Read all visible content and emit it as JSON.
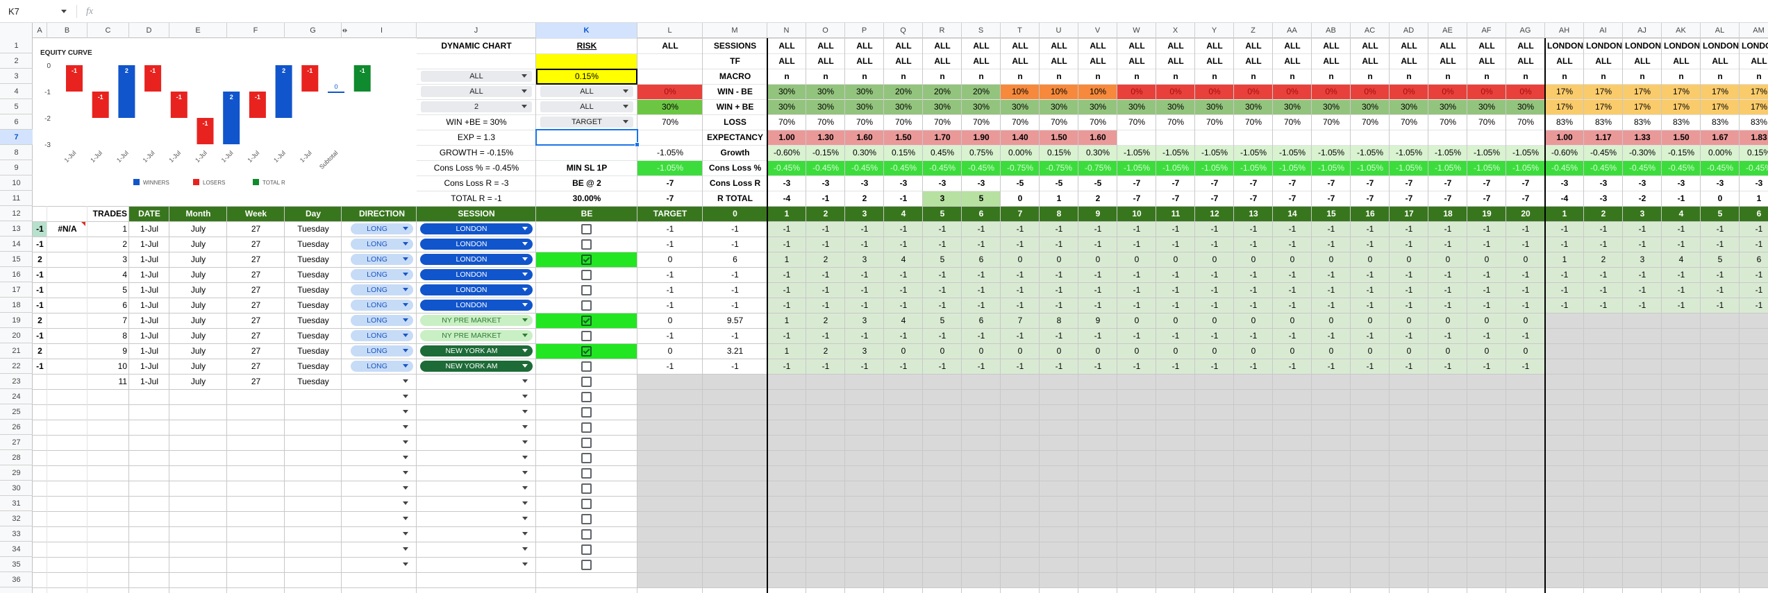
{
  "sheet": {
    "name_box": "K7",
    "formula_icon": "fx",
    "columns": [
      "A",
      "B",
      "C",
      "D",
      "E",
      "F",
      "G",
      "I",
      "J",
      "K",
      "L",
      "M",
      "N",
      "O",
      "P",
      "Q",
      "R",
      "S",
      "T",
      "U",
      "V",
      "W",
      "X",
      "Y",
      "Z",
      "AA",
      "AB",
      "AC",
      "AD",
      "AE",
      "AF",
      "AG",
      "AH",
      "AI",
      "AJ",
      "AK",
      "AL",
      "AM"
    ],
    "row_numbers": [
      1,
      2,
      3,
      4,
      5,
      6,
      7,
      8,
      9,
      10,
      11,
      12,
      13,
      14,
      15,
      16,
      17,
      18,
      19,
      20,
      21,
      22,
      23,
      24,
      25,
      26,
      27,
      28,
      29,
      30,
      31,
      32,
      33,
      34,
      35,
      36
    ],
    "cells": {
      "1": {
        "J": "DYNAMIC CHART",
        "K": "RISK",
        "L": "ALL",
        "M": "SESSIONS",
        "N": [
          "ALL",
          "ALL",
          "ALL",
          "ALL",
          "ALL",
          "ALL",
          "ALL",
          "ALL",
          "ALL",
          "ALL",
          "ALL",
          "ALL",
          "ALL",
          "ALL",
          "ALL",
          "ALL",
          "ALL",
          "ALL",
          "ALL",
          "ALL",
          "LONDON",
          "LONDON",
          "LONDON",
          "LONDON",
          "LONDON",
          "LONDON"
        ]
      },
      "2": {
        "M": "TF",
        "N": [
          "ALL",
          "ALL",
          "ALL",
          "ALL",
          "ALL",
          "ALL",
          "ALL",
          "ALL",
          "ALL",
          "ALL",
          "ALL",
          "ALL",
          "ALL",
          "ALL",
          "ALL",
          "ALL",
          "ALL",
          "ALL",
          "ALL",
          "ALL",
          "ALL",
          "ALL",
          "ALL",
          "ALL",
          "ALL",
          "ALL"
        ]
      },
      "3": {
        "J": "ALL",
        "K": "0.15%",
        "M": "MACRO",
        "N": [
          "n",
          "n",
          "n",
          "n",
          "n",
          "n",
          "n",
          "n",
          "n",
          "n",
          "n",
          "n",
          "n",
          "n",
          "n",
          "n",
          "n",
          "n",
          "n",
          "n",
          "n",
          "n",
          "n",
          "n",
          "n",
          "n"
        ]
      },
      "4": {
        "J": "ALL",
        "K": "ALL",
        "L": "0%",
        "M": "WIN - BE",
        "N": [
          "30%",
          "30%",
          "30%",
          "20%",
          "20%",
          "20%",
          "10%",
          "10%",
          "10%",
          "0%",
          "0%",
          "0%",
          "0%",
          "0%",
          "0%",
          "0%",
          "0%",
          "0%",
          "0%",
          "0%",
          "17%",
          "17%",
          "17%",
          "17%",
          "17%",
          "17%"
        ]
      },
      "5": {
        "J": "2",
        "K": "ALL",
        "L": "30%",
        "M": "WIN + BE",
        "N": [
          "30%",
          "30%",
          "30%",
          "30%",
          "30%",
          "30%",
          "30%",
          "30%",
          "30%",
          "30%",
          "30%",
          "30%",
          "30%",
          "30%",
          "30%",
          "30%",
          "30%",
          "30%",
          "30%",
          "30%",
          "17%",
          "17%",
          "17%",
          "17%",
          "17%",
          "17%"
        ]
      },
      "6": {
        "J": "WIN +BE = 30%",
        "K": "TARGET",
        "L": "70%",
        "M": "LOSS",
        "N": [
          "70%",
          "70%",
          "70%",
          "70%",
          "70%",
          "70%",
          "70%",
          "70%",
          "70%",
          "70%",
          "70%",
          "70%",
          "70%",
          "70%",
          "70%",
          "70%",
          "70%",
          "70%",
          "70%",
          "70%",
          "83%",
          "83%",
          "83%",
          "83%",
          "83%",
          "83%"
        ]
      },
      "7": {
        "J": "EXP = 1.3",
        "M": "EXPECTANCY",
        "N": [
          "1.00",
          "1.30",
          "1.60",
          "1.50",
          "1.70",
          "1.90",
          "1.40",
          "1.50",
          "1.60"
        ],
        "AH": [
          "1.00",
          "1.17",
          "1.33",
          "1.50",
          "1.67",
          "1.83"
        ]
      },
      "8": {
        "J": "GROWTH = -0.15%",
        "L": "-1.05%",
        "M": "Growth",
        "N": [
          "-0.60%",
          "-0.15%",
          "0.30%",
          "0.15%",
          "0.45%",
          "0.75%",
          "0.00%",
          "0.15%",
          "0.30%",
          "-1.05%",
          "-1.05%",
          "-1.05%",
          "-1.05%",
          "-1.05%",
          "-1.05%",
          "-1.05%",
          "-1.05%",
          "-1.05%",
          "-1.05%",
          "-1.05%",
          "-0.60%",
          "-0.45%",
          "-0.30%",
          "-0.15%",
          "0.00%",
          "0.15%"
        ]
      },
      "9": {
        "J": "Cons Loss % = -0.45%",
        "K": "MIN SL 1P",
        "L": "-1.05%",
        "M": "Cons Loss %",
        "N": [
          "-0.45%",
          "-0.45%",
          "-0.45%",
          "-0.45%",
          "-0.45%",
          "-0.45%",
          "-0.75%",
          "-0.75%",
          "-0.75%",
          "-1.05%",
          "-1.05%",
          "-1.05%",
          "-1.05%",
          "-1.05%",
          "-1.05%",
          "-1.05%",
          "-1.05%",
          "-1.05%",
          "-1.05%",
          "-1.05%",
          "-0.45%",
          "-0.45%",
          "-0.45%",
          "-0.45%",
          "-0.45%",
          "-0.45%"
        ]
      },
      "10": {
        "J": "Cons Loss R = -3",
        "K": "BE @ 2",
        "L": -7,
        "M": "Cons Loss R",
        "N": [
          -3,
          -3,
          -3,
          -3,
          -3,
          -3,
          -5,
          -5,
          -5,
          -7,
          -7,
          -7,
          -7,
          -7,
          -7,
          -7,
          -7,
          -7,
          -7,
          -7,
          -3,
          -3,
          -3,
          -3,
          -3,
          -3
        ]
      },
      "11": {
        "J": "TOTAL R = -1",
        "K": "30.00%",
        "L": -7,
        "M": "R TOTAL",
        "N": [
          -4,
          -1,
          2,
          -1,
          3,
          5,
          0,
          1,
          2,
          -7,
          -7,
          -7,
          -7,
          -7,
          -7,
          -7,
          -7,
          -7,
          -7,
          -7,
          -4,
          -3,
          -2,
          -1,
          0,
          1
        ]
      },
      "12": {
        "C": "TRADES",
        "D": "DATE",
        "E": "Month",
        "F": "Week",
        "G": "Day",
        "I": "DIRECTION",
        "J": "SESSION",
        "K": "BE",
        "L": "TARGET",
        "M": 0,
        "N": [
          1,
          2,
          3,
          4,
          5,
          6,
          7,
          8,
          9,
          10,
          11,
          12,
          13,
          14,
          15,
          16,
          17,
          18,
          19,
          20,
          1,
          2,
          3,
          4,
          5,
          6
        ]
      },
      "13": {
        "A": -1,
        "B": "#N/A",
        "C": 1,
        "D": "1-Jul",
        "E": "July",
        "F": 27,
        "G": "Tuesday",
        "I": "LONG",
        "J": {
          "text": "LONDON",
          "color": "#1155cc",
          "text_color": "#ffffff"
        },
        "K": false,
        "L": -1,
        "M": -1,
        "N": [
          -1,
          -1,
          -1,
          -1,
          -1,
          -1,
          -1,
          -1,
          -1,
          -1,
          -1,
          -1,
          -1,
          -1,
          -1,
          -1,
          -1,
          -1,
          -1,
          -1,
          -1,
          -1,
          -1,
          -1,
          -1,
          -1
        ]
      },
      "14": {
        "A": -1,
        "C": 2,
        "D": "1-Jul",
        "E": "July",
        "F": 27,
        "G": "Tuesday",
        "I": "LONG",
        "J": {
          "text": "LONDON",
          "color": "#1155cc",
          "text_color": "#ffffff"
        },
        "K": false,
        "L": -1,
        "M": -1,
        "N": [
          -1,
          -1,
          -1,
          -1,
          -1,
          -1,
          -1,
          -1,
          -1,
          -1,
          -1,
          -1,
          -1,
          -1,
          -1,
          -1,
          -1,
          -1,
          -1,
          -1,
          -1,
          -1,
          -1,
          -1,
          -1,
          -1
        ]
      },
      "15": {
        "A": 2,
        "C": 3,
        "D": "1-Jul",
        "E": "July",
        "F": 27,
        "G": "Tuesday",
        "I": "LONG",
        "J": {
          "text": "LONDON",
          "color": "#1155cc",
          "text_color": "#ffffff"
        },
        "K": true,
        "L": 0,
        "M": 6,
        "N": [
          1,
          2,
          3,
          4,
          5,
          6,
          0,
          0,
          0,
          0,
          0,
          0,
          0,
          0,
          0,
          0,
          0,
          0,
          0,
          0,
          1,
          2,
          3,
          4,
          5,
          6
        ]
      },
      "16": {
        "A": -1,
        "C": 4,
        "D": "1-Jul",
        "E": "July",
        "F": 27,
        "G": "Tuesday",
        "I": "LONG",
        "J": {
          "text": "LONDON",
          "color": "#1155cc",
          "text_color": "#ffffff"
        },
        "K": false,
        "L": -1,
        "M": -1,
        "N": [
          -1,
          -1,
          -1,
          -1,
          -1,
          -1,
          -1,
          -1,
          -1,
          -1,
          -1,
          -1,
          -1,
          -1,
          -1,
          -1,
          -1,
          -1,
          -1,
          -1,
          -1,
          -1,
          -1,
          -1,
          -1,
          -1
        ]
      },
      "17": {
        "A": -1,
        "C": 5,
        "D": "1-Jul",
        "E": "July",
        "F": 27,
        "G": "Tuesday",
        "I": "LONG",
        "J": {
          "text": "LONDON",
          "color": "#1155cc",
          "text_color": "#ffffff"
        },
        "K": false,
        "L": -1,
        "M": -1,
        "N": [
          -1,
          -1,
          -1,
          -1,
          -1,
          -1,
          -1,
          -1,
          -1,
          -1,
          -1,
          -1,
          -1,
          -1,
          -1,
          -1,
          -1,
          -1,
          -1,
          -1,
          -1,
          -1,
          -1,
          -1,
          -1,
          -1
        ]
      },
      "18": {
        "A": -1,
        "C": 6,
        "D": "1-Jul",
        "E": "July",
        "F": 27,
        "G": "Tuesday",
        "I": "LONG",
        "J": {
          "text": "LONDON",
          "color": "#1155cc",
          "text_color": "#ffffff"
        },
        "K": false,
        "L": -1,
        "M": -1,
        "N": [
          -1,
          -1,
          -1,
          -1,
          -1,
          -1,
          -1,
          -1,
          -1,
          -1,
          -1,
          -1,
          -1,
          -1,
          -1,
          -1,
          -1,
          -1,
          -1,
          -1,
          -1,
          -1,
          -1,
          -1,
          -1,
          -1
        ]
      },
      "19": {
        "A": 2,
        "C": 7,
        "D": "1-Jul",
        "E": "July",
        "F": 27,
        "G": "Tuesday",
        "I": "LONG",
        "J": {
          "text": "NY PRE MARKET",
          "color": "#c9efc4",
          "text_color": "#2e7d32"
        },
        "K": true,
        "L": 0,
        "M": 9.57,
        "N": [
          1,
          2,
          3,
          4,
          5,
          6,
          7,
          8,
          9,
          0,
          0,
          0,
          0,
          0,
          0,
          0,
          0,
          0,
          0,
          0
        ]
      },
      "20": {
        "A": -1,
        "C": 8,
        "D": "1-Jul",
        "E": "July",
        "F": 27,
        "G": "Tuesday",
        "I": "LONG",
        "J": {
          "text": "NY PRE MARKET",
          "color": "#c9efc4",
          "text_color": "#2e7d32"
        },
        "K": false,
        "L": -1,
        "M": -1,
        "N": [
          -1,
          -1,
          -1,
          -1,
          -1,
          -1,
          -1,
          -1,
          -1,
          -1,
          -1,
          -1,
          -1,
          -1,
          -1,
          -1,
          -1,
          -1,
          -1,
          -1
        ]
      },
      "21": {
        "A": 2,
        "C": 9,
        "D": "1-Jul",
        "E": "July",
        "F": 27,
        "G": "Tuesday",
        "I": "LONG",
        "J": {
          "text": "NEW YORK AM",
          "color": "#1d6b37",
          "text_color": "#ffffff"
        },
        "K": true,
        "L": 0,
        "M": 3.21,
        "N": [
          1,
          2,
          3,
          0,
          0,
          0,
          0,
          0,
          0,
          0,
          0,
          0,
          0,
          0,
          0,
          0,
          0,
          0,
          0,
          0
        ]
      },
      "22": {
        "A": -1,
        "C": 10,
        "D": "1-Jul",
        "E": "July",
        "F": 27,
        "G": "Tuesday",
        "I": "LONG",
        "J": {
          "text": "NEW YORK AM",
          "color": "#1d6b37",
          "text_color": "#ffffff"
        },
        "K": false,
        "L": -1,
        "M": -1,
        "N": [
          -1,
          -1,
          -1,
          -1,
          -1,
          -1,
          -1,
          -1,
          -1,
          -1,
          -1,
          -1,
          -1,
          -1,
          -1,
          -1,
          -1,
          -1,
          -1,
          -1
        ]
      },
      "23": {
        "C": 11,
        "D": "1-Jul",
        "E": "July",
        "F": 27,
        "G": "Tuesday",
        "K": false
      },
      "24": {
        "K": false
      },
      "25": {
        "K": false
      },
      "26": {
        "K": false
      },
      "27": {
        "K": false
      },
      "28": {
        "K": false
      },
      "29": {
        "K": false
      },
      "30": {
        "K": false
      },
      "31": {
        "K": false
      },
      "32": {
        "K": false
      },
      "33": {
        "K": false
      },
      "34": {
        "K": false
      },
      "35": {
        "K": false
      }
    }
  },
  "chart_data": {
    "type": "waterfall",
    "title": "EQUITY CURVE",
    "categories": [
      "1-Jul",
      "1-Jul",
      "1-Jul",
      "1-Jul",
      "1-Jul",
      "1-Jul",
      "1-Jul",
      "1-Jul",
      "1-Jul",
      "1-Jul",
      "Subtotal",
      null
    ],
    "values": [
      -1,
      -1,
      2,
      -1,
      -1,
      -1,
      2,
      -1,
      2,
      -1,
      0,
      -1
    ],
    "ylim": [
      -3,
      0
    ],
    "yticks": [
      0,
      -1,
      -2,
      -3
    ],
    "legend": [
      {
        "name": "WINNERS",
        "color": "#1155cc"
      },
      {
        "name": "LOSERS",
        "color": "#e8231f"
      },
      {
        "name": "TOTAL R",
        "color": "#0f8a2e"
      }
    ]
  }
}
